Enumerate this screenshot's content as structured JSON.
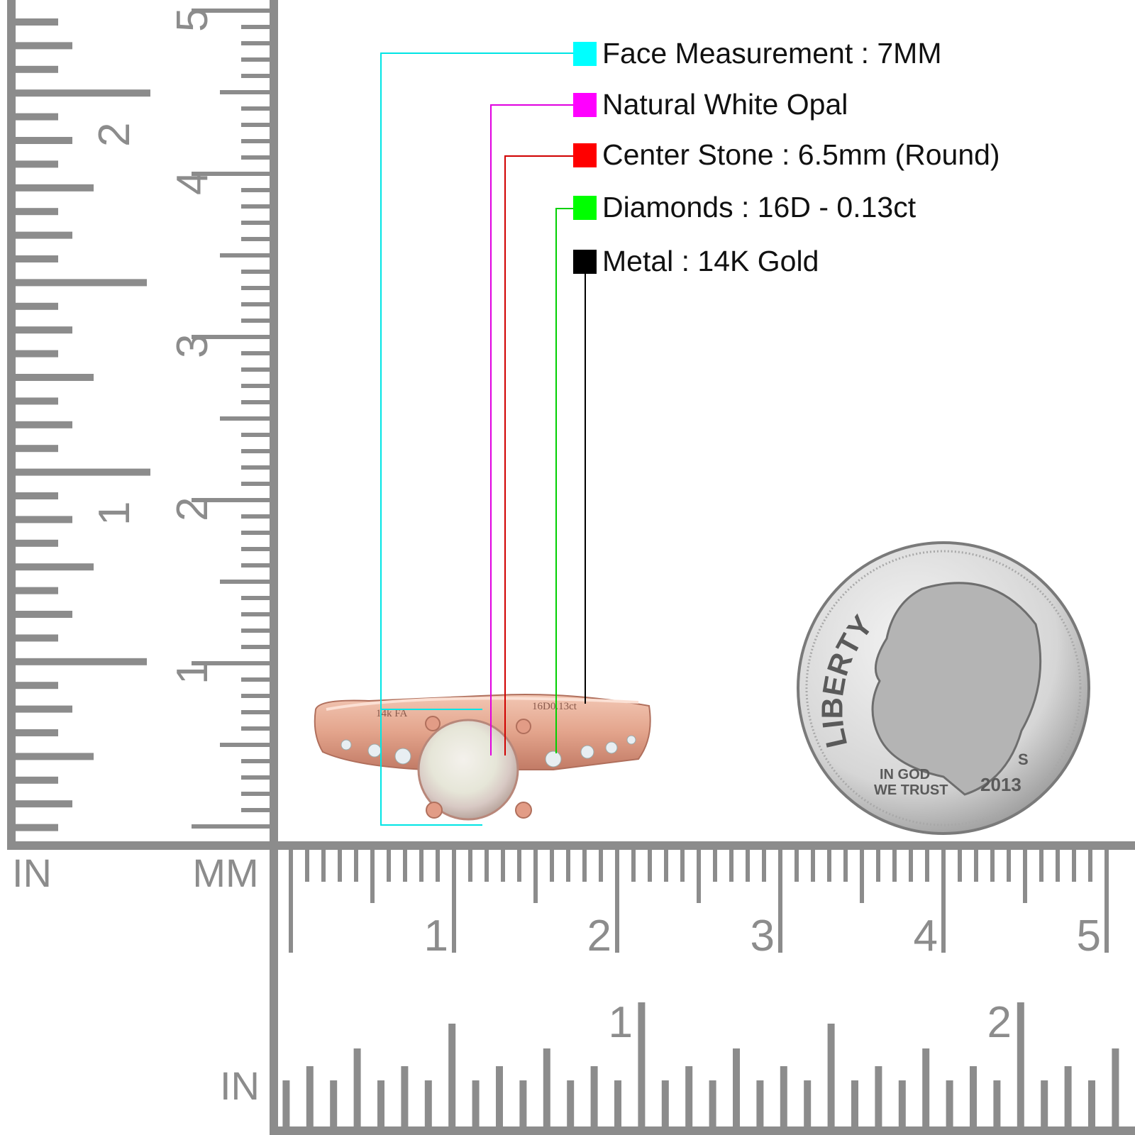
{
  "legend": [
    {
      "label": "Face Measurement : 7MM",
      "color": "#00ffff"
    },
    {
      "label": "Natural White Opal",
      "color": "#ff00ff"
    },
    {
      "label": "Center Stone : 6.5mm (Round)",
      "color": "#ff0000"
    },
    {
      "label": "Diamonds : 16D - 0.13ct",
      "color": "#00ff00"
    },
    {
      "label": "Metal : 14K Gold",
      "color": "#000000"
    }
  ],
  "ruler": {
    "unit_left_inch": "IN",
    "unit_left_mm": "MM",
    "unit_bottom_inch": "IN",
    "vertical_cm_labels": [
      "1",
      "2",
      "3",
      "4",
      "5"
    ],
    "vertical_inch_labels": [
      "1",
      "2"
    ],
    "horizontal_cm_labels": [
      "1",
      "2",
      "3",
      "4",
      "5"
    ],
    "horizontal_inch_labels": [
      "1",
      "2"
    ]
  },
  "ring": {
    "engraving_left": "14k FA",
    "engraving_right": "16D0.13ct"
  },
  "coin": {
    "motto_top": "LIBERTY",
    "motto_line1": "IN GOD",
    "motto_line2": "WE TRUST",
    "year": "2013",
    "mint": "S"
  }
}
